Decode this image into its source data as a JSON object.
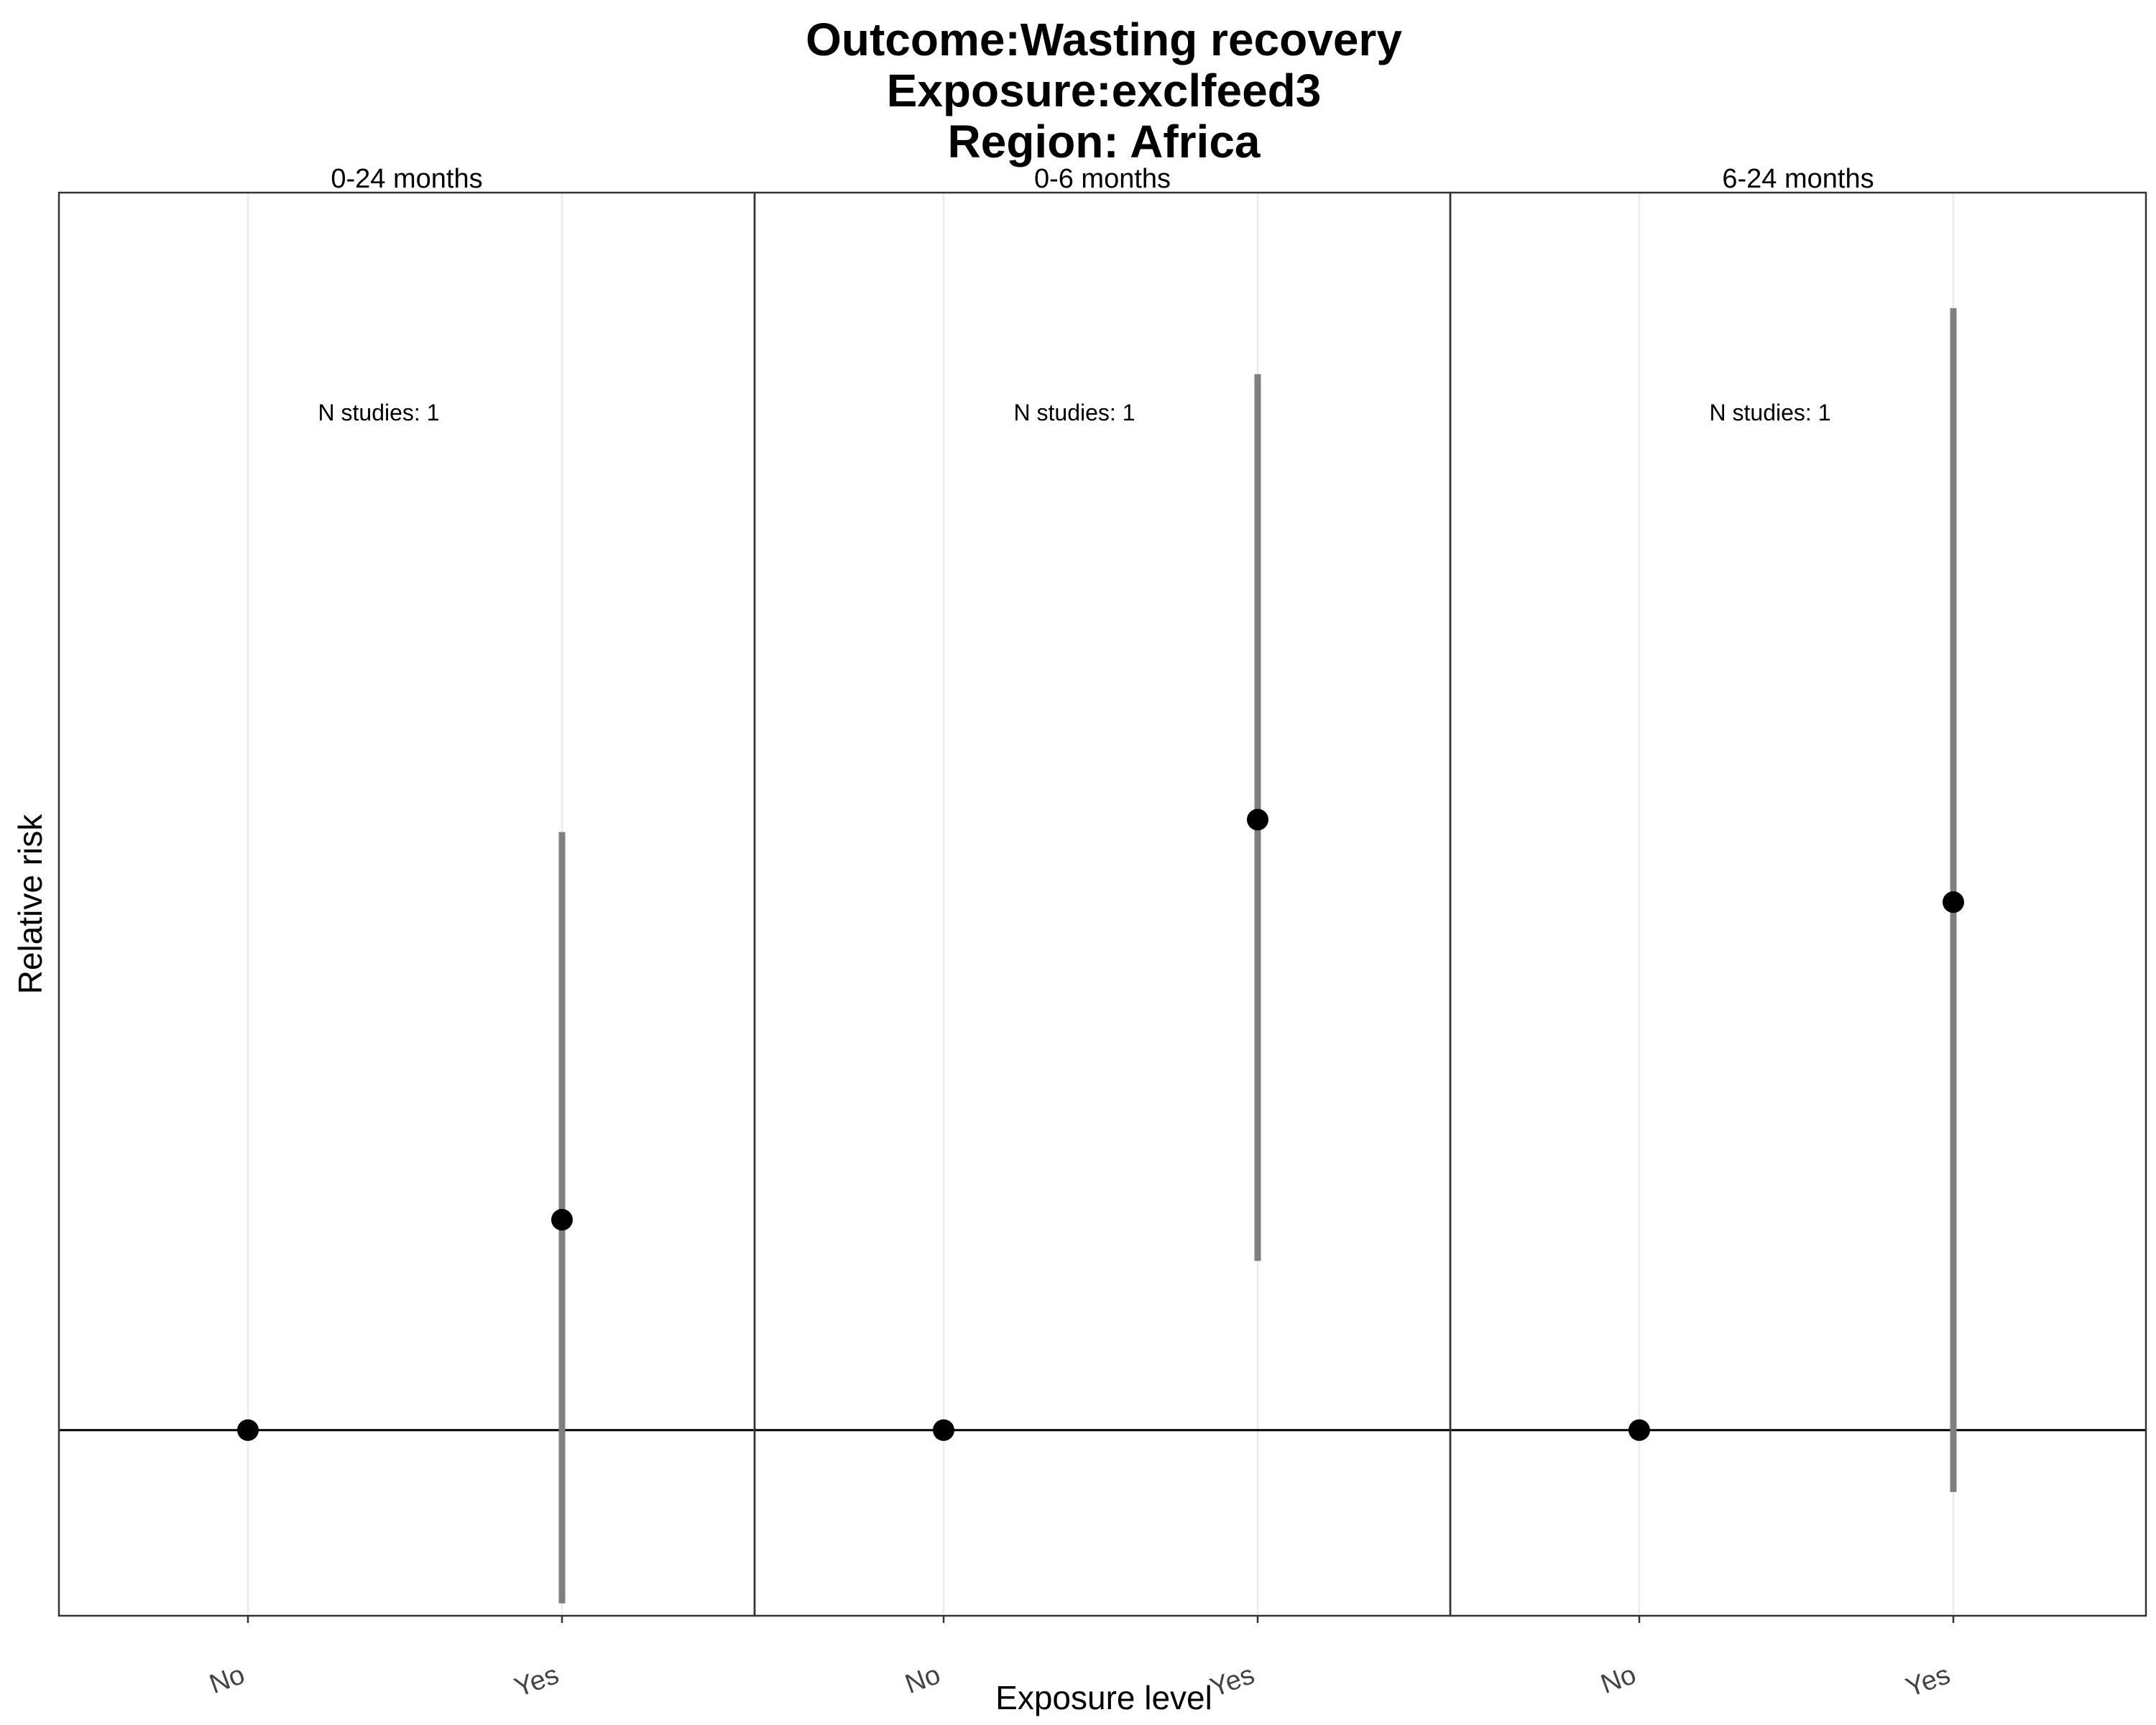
{
  "chart_data": {
    "type": "scatter",
    "title_lines": [
      "Outcome:Wasting recovery",
      "Exposure:exclfeed3",
      "Region: Africa"
    ],
    "xlabel": "Exposure level",
    "ylabel": "Relative risk",
    "categories": [
      "No",
      "Yes"
    ],
    "reference_line": 1,
    "y_ticks_shown": false,
    "grid": "vertical major gridlines only",
    "ylim": [
      0.955,
      1.3
    ],
    "panels": [
      {
        "label": "0-24 months",
        "annotation": "N studies: 1",
        "points": [
          {
            "x": "No",
            "y": 1.0,
            "ci_lower": null,
            "ci_upper": null
          },
          {
            "x": "Yes",
            "y": 1.051,
            "ci_lower": 0.958,
            "ci_upper": 1.145
          }
        ]
      },
      {
        "label": "0-6 months",
        "annotation": "N studies: 1",
        "points": [
          {
            "x": "No",
            "y": 1.0,
            "ci_lower": null,
            "ci_upper": null
          },
          {
            "x": "Yes",
            "y": 1.148,
            "ci_lower": 1.041,
            "ci_upper": 1.256
          }
        ]
      },
      {
        "label": "6-24 months",
        "annotation": "N studies: 1",
        "points": [
          {
            "x": "No",
            "y": 1.0,
            "ci_lower": null,
            "ci_upper": null
          },
          {
            "x": "Yes",
            "y": 1.128,
            "ci_lower": 0.985,
            "ci_upper": 1.272
          }
        ]
      }
    ],
    "colors": {
      "point": "#000000",
      "ci_bar": "#7f7f7f",
      "reference_line": "#000000",
      "panel_border": "#333333",
      "gridline": "#ebebeb",
      "tick_label": "#444444"
    }
  }
}
